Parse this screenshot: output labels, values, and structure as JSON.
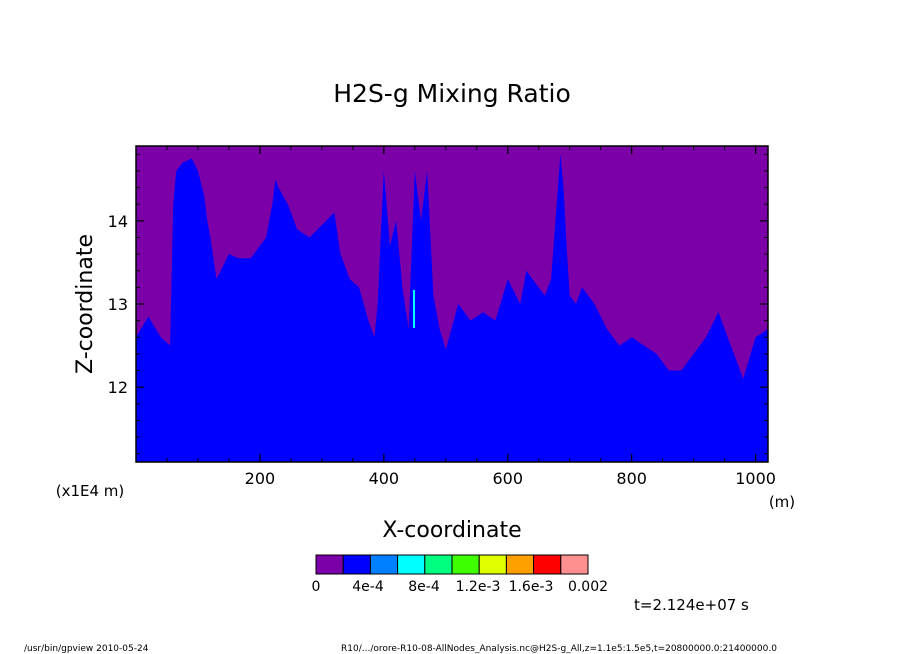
{
  "chart_data": {
    "type": "heatmap",
    "title": "H2S-g Mixing Ratio",
    "xlabel": "X-coordinate",
    "ylabel": "Z-coordinate",
    "x_unit": "(m)",
    "y_scale_note": "(x1E4 m)",
    "xlim": [
      0,
      1020
    ],
    "ylim": [
      11.1,
      14.9
    ],
    "x_ticks": [
      "200",
      "400",
      "600",
      "800",
      "1000"
    ],
    "y_ticks": [
      "12",
      "13",
      "14"
    ],
    "colorbar": {
      "colors": [
        "#7b00a8",
        "#0000ff",
        "#0080ff",
        "#00ffff",
        "#00ff80",
        "#40ff00",
        "#e0ff00",
        "#ffa000",
        "#ff0000",
        "#ff9090"
      ],
      "tick_labels": [
        "0",
        "4e-4",
        "8e-4",
        "1.2e-3",
        "1.6e-3",
        "0.002"
      ]
    },
    "time_label": "t=2.124e+07 s",
    "boundary": {
      "x": [
        0,
        20,
        40,
        55,
        60,
        65,
        75,
        90,
        100,
        110,
        115,
        120,
        130,
        150,
        165,
        185,
        200,
        210,
        220,
        225,
        230,
        245,
        260,
        280,
        300,
        320,
        330,
        345,
        360,
        375,
        385,
        390,
        395,
        400,
        410,
        420,
        430,
        440,
        450,
        460,
        470,
        480,
        490,
        500,
        520,
        540,
        560,
        580,
        600,
        620,
        630,
        640,
        660,
        670,
        680,
        685,
        690,
        695,
        700,
        710,
        720,
        740,
        760,
        780,
        800,
        820,
        840,
        860,
        880,
        900,
        920,
        940,
        960,
        980,
        1000,
        1020
      ],
      "z": [
        12.6,
        12.85,
        12.6,
        12.5,
        14.2,
        14.6,
        14.7,
        14.75,
        14.6,
        14.3,
        14.0,
        13.8,
        13.3,
        13.6,
        13.55,
        13.55,
        13.7,
        13.8,
        14.2,
        14.5,
        14.4,
        14.2,
        13.9,
        13.8,
        13.95,
        14.1,
        13.6,
        13.3,
        13.2,
        12.8,
        12.6,
        13.0,
        13.8,
        14.6,
        13.7,
        14.0,
        13.2,
        12.7,
        14.6,
        14.0,
        14.6,
        13.1,
        12.7,
        12.45,
        13.0,
        12.8,
        12.9,
        12.8,
        13.3,
        13.0,
        13.4,
        13.3,
        13.1,
        13.3,
        14.3,
        14.8,
        14.4,
        13.7,
        13.1,
        13.0,
        13.2,
        13.0,
        12.7,
        12.5,
        12.6,
        12.5,
        12.4,
        12.2,
        12.2,
        12.4,
        12.6,
        12.9,
        12.5,
        12.1,
        12.6,
        12.7
      ]
    }
  },
  "footer": {
    "left": "/usr/bin/gpview   2010-05-24",
    "right": "R10/.../orore-R10-08-AllNodes_Analysis.nc@H2S-g_All,z=1.1e5:1.5e5,t=20800000.0:21400000.0"
  }
}
